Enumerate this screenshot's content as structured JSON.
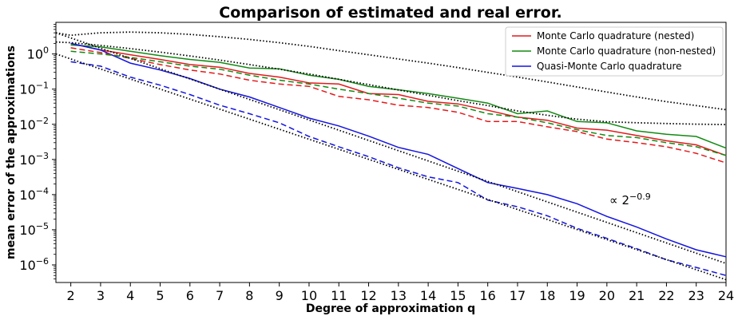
{
  "chart_data": {
    "type": "line",
    "title": "Comparison of estimated and real error.",
    "xlabel": "Degree of approximation q",
    "ylabel": "mean error of the approximations",
    "yscale": "log",
    "xlim": [
      1.5,
      24
    ],
    "ylim_exponent": [
      -6.5,
      0.9
    ],
    "x": [
      2,
      3,
      4,
      5,
      6,
      7,
      8,
      9,
      10,
      11,
      12,
      13,
      14,
      15,
      16,
      17,
      18,
      19,
      20,
      21,
      22,
      23,
      24
    ],
    "x_ticks": [
      "2",
      "3",
      "4",
      "5",
      "6",
      "7",
      "8",
      "9",
      "10",
      "11",
      "12",
      "13",
      "14",
      "15",
      "16",
      "17",
      "18",
      "19",
      "20",
      "21",
      "22",
      "23",
      "24"
    ],
    "y_ticks": [
      {
        "base": "10",
        "exp": "0",
        "value": 1
      },
      {
        "base": "10",
        "exp": "−1",
        "value": 0.1
      },
      {
        "base": "10",
        "exp": "−2",
        "value": 0.01
      },
      {
        "base": "10",
        "exp": "−3",
        "value": 0.001
      },
      {
        "base": "10",
        "exp": "−4",
        "value": 0.0001
      },
      {
        "base": "10",
        "exp": "−5",
        "value": 1e-05
      },
      {
        "base": "10",
        "exp": "−6",
        "value": 1e-06
      }
    ],
    "grid": false,
    "legend_position": "top-right",
    "legend": [
      {
        "label": "Monte Carlo quadrature (nested)",
        "color": "#e31a1c"
      },
      {
        "label": "Monte Carlo quadrature (non-nested)",
        "color": "#138a13"
      },
      {
        "label": "Quasi-Monte Carlo quadrature",
        "color": "#1414e0"
      }
    ],
    "annotation": {
      "text_base": "∝ 2",
      "text_exp": "−0.9",
      "x": 20.1,
      "y": 6e-05
    },
    "series": [
      {
        "name": "Monte Carlo quadrature (nested)",
        "style": "solid",
        "color": "#e31a1c",
        "values": [
          2.0,
          1.3,
          0.95,
          0.7,
          0.5,
          0.42,
          0.28,
          0.22,
          0.15,
          0.14,
          0.075,
          0.07,
          0.045,
          0.038,
          0.025,
          0.016,
          0.013,
          0.0078,
          0.0068,
          0.0048,
          0.0034,
          0.0026,
          0.0013
        ]
      },
      {
        "name": "Monte Carlo quadrature (non-nested)",
        "style": "solid",
        "color": "#138a13",
        "values": [
          1.8,
          1.6,
          1.2,
          0.9,
          0.7,
          0.58,
          0.4,
          0.38,
          0.25,
          0.19,
          0.12,
          0.096,
          0.075,
          0.055,
          0.04,
          0.02,
          0.024,
          0.012,
          0.011,
          0.0065,
          0.0052,
          0.0045,
          0.0021
        ]
      },
      {
        "name": "Quasi-Monte Carlo quadrature",
        "style": "solid",
        "color": "#1414e0",
        "values": [
          2.0,
          1.3,
          0.55,
          0.35,
          0.2,
          0.1,
          0.06,
          0.03,
          0.015,
          0.009,
          0.0046,
          0.0022,
          0.0014,
          0.00055,
          0.00022,
          0.00015,
          0.0001,
          5.5e-05,
          2.4e-05,
          1.2e-05,
          5.5e-06,
          2.7e-06,
          1.7e-06
        ]
      },
      {
        "style": "dashed",
        "color": "#e31a1c",
        "values": [
          1.5,
          1.1,
          0.75,
          0.5,
          0.35,
          0.27,
          0.18,
          0.14,
          0.12,
          0.062,
          0.05,
          0.035,
          0.03,
          0.022,
          0.012,
          0.012,
          0.0085,
          0.0062,
          0.0038,
          0.003,
          0.0023,
          0.0015,
          0.0008
        ]
      },
      {
        "style": "dashed",
        "color": "#138a13",
        "values": [
          1.2,
          1.0,
          0.8,
          0.6,
          0.45,
          0.37,
          0.25,
          0.18,
          0.14,
          0.1,
          0.075,
          0.055,
          0.04,
          0.033,
          0.02,
          0.016,
          0.011,
          0.007,
          0.0048,
          0.0042,
          0.003,
          0.0023,
          0.0013
        ]
      },
      {
        "style": "dashed",
        "color": "#1414e0",
        "values": [
          0.6,
          0.45,
          0.22,
          0.13,
          0.07,
          0.035,
          0.02,
          0.011,
          0.0045,
          0.0023,
          0.0012,
          0.00058,
          0.00032,
          0.00022,
          7e-05,
          4.5e-05,
          2.5e-05,
          1.1e-05,
          5.7e-06,
          2.9e-06,
          1.4e-06,
          8.5e-07,
          5e-07
        ]
      },
      {
        "style": "dotted",
        "color": "#000000",
        "x": [
          1.5,
          2,
          3,
          4,
          5,
          6,
          7,
          8,
          9,
          10,
          11,
          12,
          13,
          14,
          15,
          16,
          17,
          18,
          19,
          20,
          21,
          22,
          23,
          24
        ],
        "values": [
          4.0,
          3.4,
          4.0,
          4.2,
          4.0,
          3.6,
          3.1,
          2.6,
          2.1,
          1.65,
          1.25,
          0.95,
          0.72,
          0.55,
          0.41,
          0.3,
          0.22,
          0.16,
          0.115,
          0.083,
          0.06,
          0.044,
          0.034,
          0.026
        ]
      },
      {
        "style": "dotted",
        "color": "#000000",
        "x": [
          1.5,
          2,
          3,
          4,
          5,
          6,
          7,
          8,
          9,
          10,
          11,
          12,
          13,
          14,
          15,
          16,
          17,
          18,
          19,
          20,
          21,
          22,
          23,
          24
        ],
        "values": [
          2.2,
          2.1,
          1.75,
          1.42,
          1.13,
          0.88,
          0.67,
          0.5,
          0.37,
          0.27,
          0.19,
          0.135,
          0.095,
          0.067,
          0.047,
          0.034,
          0.024,
          0.018,
          0.014,
          0.0118,
          0.0111,
          0.0105,
          0.0101,
          0.0098
        ]
      },
      {
        "style": "dotted",
        "color": "#000000",
        "x": [
          1.5,
          24
        ],
        "values": [
          4.0,
          1.1e-06
        ]
      },
      {
        "style": "dotted",
        "color": "#000000",
        "x": [
          1.5,
          24
        ],
        "values": [
          1.0,
          3.8e-07
        ]
      }
    ]
  }
}
